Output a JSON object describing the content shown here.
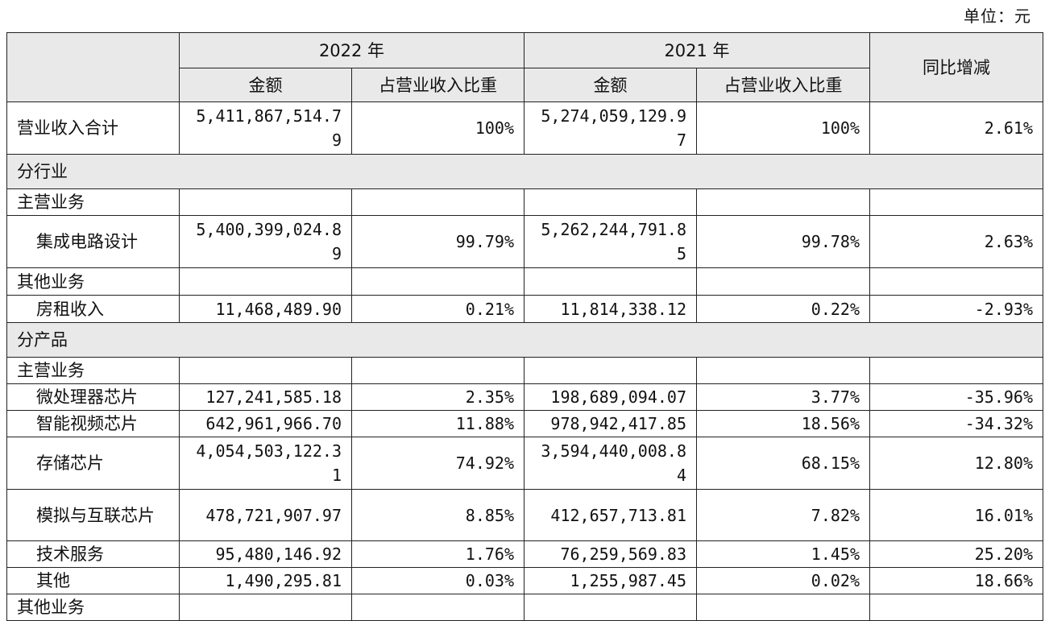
{
  "unit_label": "单位：元",
  "header": {
    "year_2022": "2022 年",
    "year_2021": "2021 年",
    "amount": "金额",
    "ratio": "占营业收入比重",
    "yoy": "同比增减"
  },
  "total": {
    "label": "营业收入合计",
    "amt2022": "5,411,867,514.79",
    "pct2022": "100%",
    "amt2021": "5,274,059,129.97",
    "pct2021": "100%",
    "yoy": "2.61%"
  },
  "sec_industry": "分行业",
  "ind_main": "主营业务",
  "ind_ic": {
    "label": "集成电路设计",
    "amt2022": "5,400,399,024.89",
    "pct2022": "99.79%",
    "amt2021": "5,262,244,791.85",
    "pct2021": "99.78%",
    "yoy": "2.63%"
  },
  "ind_other": "其他业务",
  "ind_rent": {
    "label": "房租收入",
    "amt2022": "11,468,489.90",
    "pct2022": "0.21%",
    "amt2021": "11,814,338.12",
    "pct2021": "0.22%",
    "yoy": "-2.93%"
  },
  "sec_product": "分产品",
  "prod_main": "主营业务",
  "products": [
    {
      "label": "微处理器芯片",
      "amt2022": "127,241,585.18",
      "pct2022": "2.35%",
      "amt2021": "198,689,094.07",
      "pct2021": "3.77%",
      "yoy": "-35.96%"
    },
    {
      "label": "智能视频芯片",
      "amt2022": "642,961,966.70",
      "pct2022": "11.88%",
      "amt2021": "978,942,417.85",
      "pct2021": "18.56%",
      "yoy": "-34.32%"
    },
    {
      "label": "存储芯片",
      "amt2022": "4,054,503,122.31",
      "pct2022": "74.92%",
      "amt2021": "3,594,440,008.84",
      "pct2021": "68.15%",
      "yoy": "12.80%"
    },
    {
      "label": "模拟与互联芯片",
      "amt2022": "478,721,907.97",
      "pct2022": "8.85%",
      "amt2021": "412,657,713.81",
      "pct2021": "7.82%",
      "yoy": "16.01%"
    },
    {
      "label": "技术服务",
      "amt2022": "95,480,146.92",
      "pct2022": "1.76%",
      "amt2021": "76,259,569.83",
      "pct2021": "1.45%",
      "yoy": "25.20%"
    },
    {
      "label": "其他",
      "amt2022": "1,490,295.81",
      "pct2022": "0.03%",
      "amt2021": "1,255,987.45",
      "pct2021": "0.02%",
      "yoy": "18.66%"
    }
  ],
  "prod_other": "其他业务"
}
